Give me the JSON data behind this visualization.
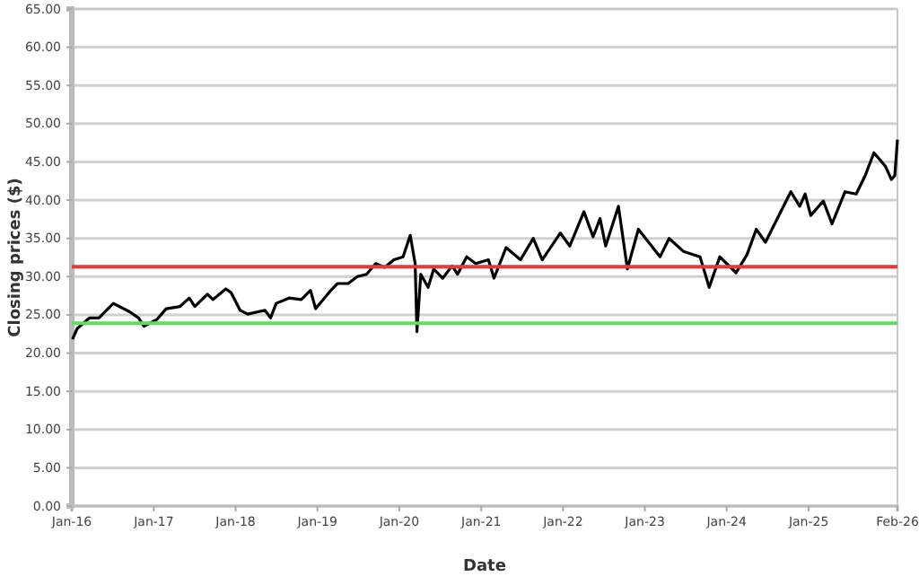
{
  "chart_data": {
    "type": "line",
    "xlabel": "Date",
    "ylabel": "Closing prices ($)",
    "xlim": [
      "2016-01-01",
      "2026-02-01"
    ],
    "xticks": [
      {
        "value": "2016-01-01",
        "label": "Jan-16"
      },
      {
        "value": "2017-01-01",
        "label": "Jan-17"
      },
      {
        "value": "2018-01-01",
        "label": "Jan-18"
      },
      {
        "value": "2019-01-01",
        "label": "Jan-19"
      },
      {
        "value": "2020-01-01",
        "label": "Jan-20"
      },
      {
        "value": "2021-01-01",
        "label": "Jan-21"
      },
      {
        "value": "2022-01-01",
        "label": "Jan-22"
      },
      {
        "value": "2023-01-01",
        "label": "Jan-23"
      },
      {
        "value": "2024-01-01",
        "label": "Jan-24"
      },
      {
        "value": "2025-01-01",
        "label": "Jan-25"
      },
      {
        "value": "2026-02-01",
        "label": "Feb-26"
      }
    ],
    "ylim": [
      0,
      65
    ],
    "yticks": [
      {
        "value": 0,
        "label": "0.00"
      },
      {
        "value": 5,
        "label": "5.00"
      },
      {
        "value": 10,
        "label": "10.00"
      },
      {
        "value": 15,
        "label": "15.00"
      },
      {
        "value": 20,
        "label": "20.00"
      },
      {
        "value": 25,
        "label": "25.00"
      },
      {
        "value": 30,
        "label": "30.00"
      },
      {
        "value": 35,
        "label": "35.00"
      },
      {
        "value": 40,
        "label": "40.00"
      },
      {
        "value": 45,
        "label": "45.00"
      },
      {
        "value": 50,
        "label": "50.00"
      },
      {
        "value": 55,
        "label": "55.00"
      },
      {
        "value": 60,
        "label": "60.00"
      },
      {
        "value": 65,
        "label": "65.00"
      }
    ],
    "grid": "y",
    "marker": "none",
    "line_style": "solid",
    "x": [
      "2016-01-04",
      "2016-01-25",
      "2016-03-20",
      "2016-05-01",
      "2016-07-04",
      "2016-09-15",
      "2016-10-25",
      "2016-11-18",
      "2017-01-15",
      "2017-02-25",
      "2017-04-28",
      "2017-06-08",
      "2017-07-03",
      "2017-08-28",
      "2017-09-22",
      "2017-11-18",
      "2017-12-12",
      "2018-01-21",
      "2018-02-24",
      "2018-05-12",
      "2018-06-06",
      "2018-07-01",
      "2018-08-27",
      "2018-10-21",
      "2018-12-01",
      "2018-12-24",
      "2019-02-21",
      "2019-04-01",
      "2019-05-18",
      "2019-06-28",
      "2019-08-08",
      "2019-09-18",
      "2019-10-28",
      "2019-12-08",
      "2020-01-18",
      "2020-02-19",
      "2020-03-12",
      "2020-03-20",
      "2020-04-06",
      "2020-05-09",
      "2020-06-03",
      "2020-07-13",
      "2020-08-24",
      "2020-09-17",
      "2020-10-28",
      "2020-12-07",
      "2021-02-02",
      "2021-02-27",
      "2021-04-22",
      "2021-06-25",
      "2021-08-21",
      "2021-09-30",
      "2021-12-20",
      "2022-01-31",
      "2022-04-04",
      "2022-05-15",
      "2022-06-15",
      "2022-07-10",
      "2022-09-05",
      "2022-10-15",
      "2022-12-03",
      "2023-03-10",
      "2023-04-19",
      "2023-06-22",
      "2023-09-04",
      "2023-10-15",
      "2023-12-01",
      "2024-02-12",
      "2024-04-01",
      "2024-05-12",
      "2024-06-22",
      "2024-10-13",
      "2024-11-22",
      "2024-12-16",
      "2025-01-10",
      "2025-03-07",
      "2025-04-15",
      "2025-06-12",
      "2025-08-01",
      "2025-09-10",
      "2025-10-19",
      "2025-12-10",
      "2026-01-05",
      "2026-01-20",
      "2026-02-01"
    ],
    "series": [
      {
        "color": "#000000",
        "values": [
          21.8,
          23.2,
          24.6,
          24.6,
          26.5,
          25.4,
          24.6,
          23.5,
          24.4,
          25.8,
          26.1,
          27.2,
          26.1,
          27.7,
          27.0,
          28.4,
          27.9,
          25.6,
          25.1,
          25.6,
          24.6,
          26.5,
          27.2,
          27.0,
          28.2,
          25.8,
          27.9,
          29.1,
          29.1,
          30.0,
          30.3,
          31.7,
          31.2,
          32.2,
          32.6,
          35.4,
          31.7,
          22.8,
          30.3,
          28.6,
          31.0,
          29.8,
          31.4,
          30.3,
          32.6,
          31.7,
          32.2,
          29.8,
          33.8,
          32.2,
          35.0,
          32.2,
          35.7,
          34.0,
          38.5,
          35.2,
          37.6,
          34.0,
          39.2,
          31.0,
          36.2,
          32.6,
          35.0,
          33.3,
          32.6,
          28.6,
          32.6,
          30.5,
          32.9,
          36.2,
          34.5,
          41.1,
          39.2,
          40.8,
          38.0,
          39.9,
          36.9,
          41.1,
          40.8,
          43.2,
          46.2,
          44.4,
          42.7,
          43.2,
          47.9
        ]
      }
    ],
    "ref_lines": [
      {
        "axis": "y",
        "value": 31.3,
        "color": "#e8393a"
      },
      {
        "axis": "y",
        "value": 23.9,
        "color": "#5fdc5f"
      }
    ]
  }
}
